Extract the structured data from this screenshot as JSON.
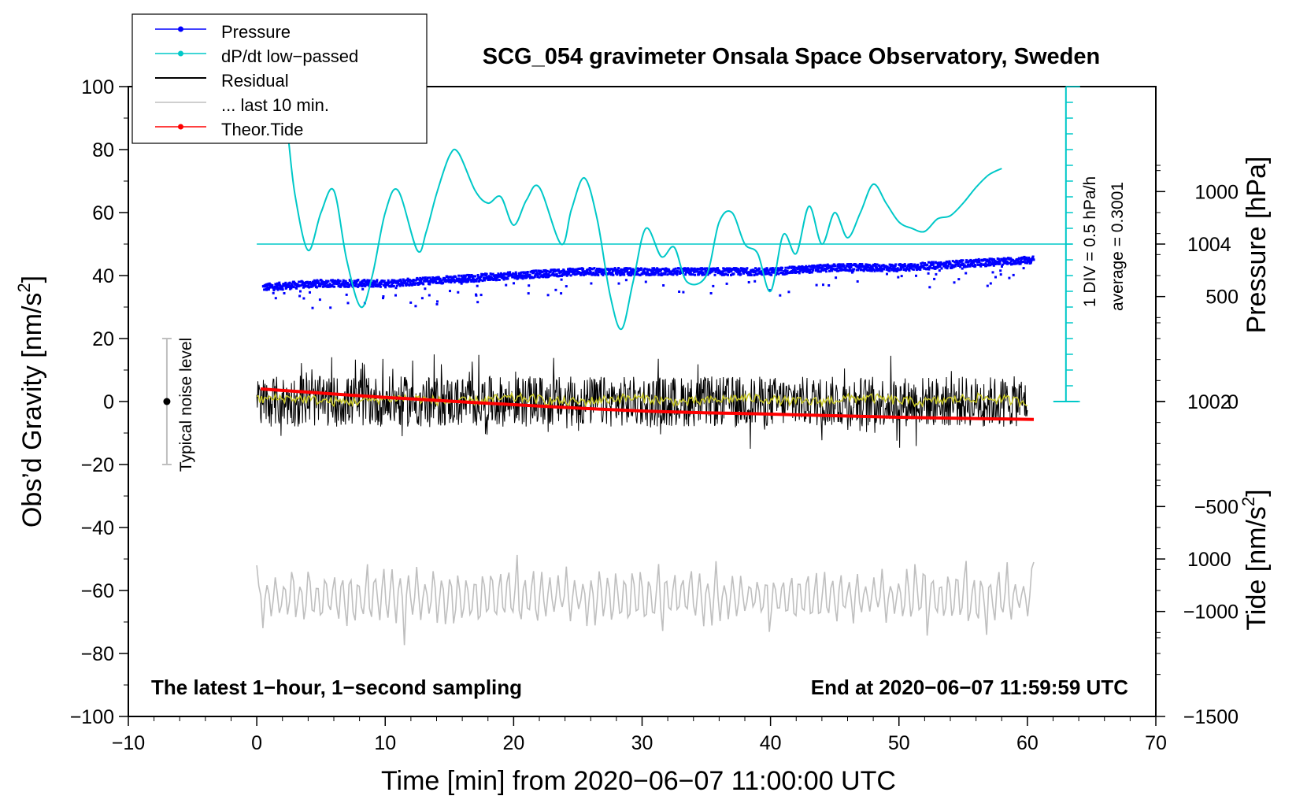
{
  "chart_data": {
    "type": "line",
    "title": "SCG_054 gravimeter Onsala Space Observatory, Sweden",
    "xlabel": "Time [min] from 2020−06−07 11:00:00 UTC",
    "ylabel_left": "Obs’d Gravity [nm/s",
    "ylabel_left_sup": "2",
    "ylabel_left_end": "]",
    "ylabel_right_pressure": "Pressure [hPa]",
    "ylabel_right_tide": "Tide [nm/s",
    "ylabel_right_tide_sup": "2",
    "ylabel_right_tide_end": "]",
    "xlim": [
      -10,
      70
    ],
    "ylim": [
      -100,
      100
    ],
    "pressure_lim": [
      998,
      1006
    ],
    "tide_lim": [
      -1500,
      1500
    ],
    "x_ticks": [
      -10,
      0,
      10,
      20,
      30,
      40,
      50,
      60,
      70
    ],
    "x_tick_labels": [
      "−10",
      "0",
      "10",
      "20",
      "30",
      "40",
      "50",
      "60",
      "70"
    ],
    "y_ticks": [
      -100,
      -80,
      -60,
      -40,
      -20,
      0,
      20,
      40,
      60,
      80,
      100
    ],
    "y_tick_labels": [
      "−100",
      "−80",
      "−60",
      "−40",
      "−20",
      "0",
      "20",
      "40",
      "60",
      "80",
      "100"
    ],
    "pressure_ticks": [
      1000,
      1002,
      1004
    ],
    "pressure_tick_labels": [
      "1000",
      "1002",
      "1004"
    ],
    "tide_ticks": [
      -1500,
      -1000,
      -500,
      0,
      500,
      1000
    ],
    "tide_tick_labels": [
      "−1500",
      "−1000",
      "−500",
      "0",
      "500",
      "1000"
    ],
    "legend": [
      {
        "label": "Pressure",
        "color": "#0000ff",
        "marker": true
      },
      {
        "label": "dP/dt low−passed",
        "color": "#00c8c8",
        "marker": true
      },
      {
        "label": "Residual",
        "color": "#000000",
        "marker": false
      },
      {
        "label": "... last 10 min.",
        "color": "#bfbfbf",
        "marker": false
      },
      {
        "label": "Theor.Tide",
        "color": "#ff0000",
        "marker": true
      }
    ],
    "series": [
      {
        "name": "Pressure",
        "axis": "pressure",
        "color": "#0000ff",
        "x": [
          0.5,
          5,
          10,
          15,
          20,
          25,
          30,
          35,
          40,
          45,
          50,
          55,
          60.5
        ],
        "values": [
          1003.45,
          1003.5,
          1003.5,
          1003.55,
          1003.6,
          1003.65,
          1003.65,
          1003.65,
          1003.65,
          1003.7,
          1003.7,
          1003.75,
          1003.8
        ]
      },
      {
        "name": "dP/dt low−passed",
        "axis": "left",
        "color": "#00c8c8",
        "x": [
          2.5,
          3,
          4,
          5,
          6,
          7,
          8.1,
          9,
          10,
          11,
          12.5,
          13.2,
          14,
          15,
          15.7,
          17,
          18,
          19,
          20,
          21,
          22,
          23.7,
          24.5,
          25.5,
          26.5,
          27.5,
          28.4,
          29.3,
          30.3,
          31.5,
          32.5,
          33.5,
          35,
          36,
          37,
          38,
          39,
          40,
          41,
          42,
          43,
          44,
          45,
          46,
          47,
          48,
          49,
          50,
          51,
          52,
          53,
          54,
          55,
          56,
          57,
          58
        ],
        "values": [
          82,
          65,
          48,
          60,
          67,
          45,
          30,
          40,
          60,
          67,
          48,
          54,
          66,
          78,
          79,
          67,
          63,
          65,
          56,
          64,
          68,
          50,
          61,
          71,
          58,
          34,
          23,
          38,
          55,
          46,
          49,
          38,
          40,
          57,
          60,
          50,
          47,
          35,
          53,
          47,
          62,
          50,
          60,
          52,
          60,
          69,
          63,
          57,
          55,
          54,
          58,
          59,
          63,
          68,
          72,
          74
        ]
      },
      {
        "name": "Residual",
        "axis": "left",
        "color": "#000000",
        "x_range": [
          0,
          60
        ],
        "amplitude": 8,
        "mean": 0
      },
      {
        "name": "Residual smoothed",
        "axis": "left",
        "color": "#c8c828",
        "x_range": [
          0,
          60
        ],
        "amplitude": 1.5,
        "mean": 0.5
      },
      {
        "name": "... last 10 min.",
        "axis": "left",
        "color": "#bfbfbf",
        "x_range": [
          0,
          60.5
        ],
        "amplitude": 8,
        "mean": -62
      },
      {
        "name": "Theor.Tide",
        "axis": "tide",
        "color": "#ff0000",
        "x": [
          0.3,
          10,
          20,
          30,
          40,
          50,
          60.5
        ],
        "values": [
          60,
          20,
          -15,
          -45,
          -60,
          -75,
          -85
        ]
      }
    ],
    "reference_line": {
      "value": 50,
      "axis": "left",
      "color": "#00c8c8"
    },
    "scale_bar": {
      "x": 63,
      "from": 0,
      "to": 100,
      "tick_step": 5,
      "color": "#00c8c8"
    },
    "noise_bar": {
      "x": -7,
      "from": -20,
      "to": 20,
      "center": 0
    }
  },
  "annotations": {
    "noise_label": "Typical noise level",
    "scale_label": "1 DIV = 0.5 hPa/h",
    "average_label": "average = 0.3001",
    "bottom_left": "The latest 1−hour, 1−second sampling",
    "bottom_right": "End at 2020−06−07 11:59:59 UTC"
  }
}
